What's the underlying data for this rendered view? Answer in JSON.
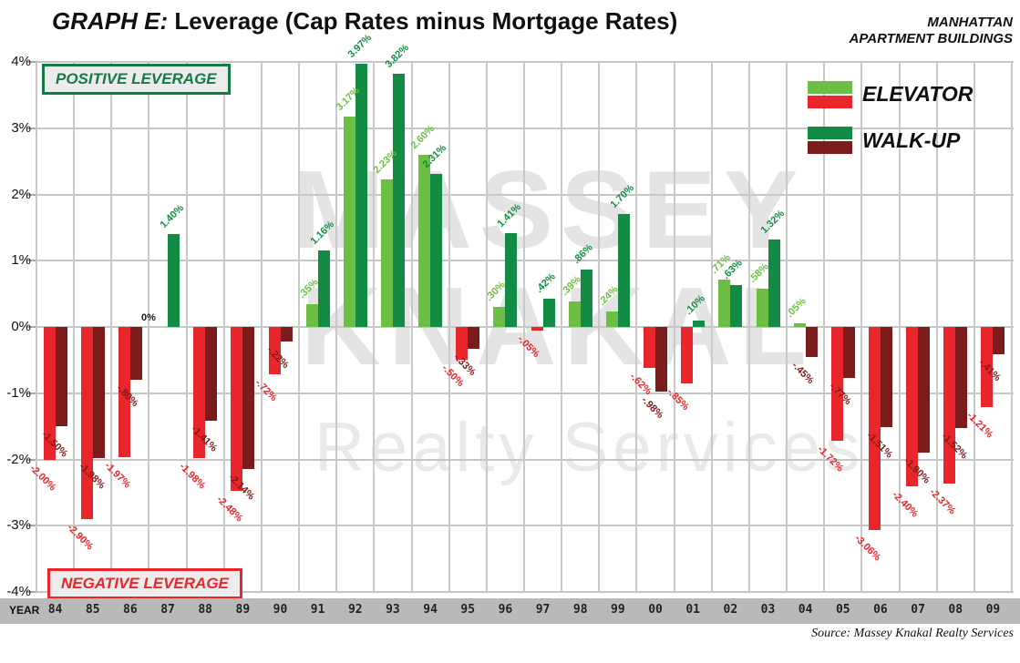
{
  "title": {
    "prefix": "GRAPH E:",
    "rest": " Leverage (Cap Rates minus Mortgage Rates)"
  },
  "header_right": {
    "line1": "MANHATTAN",
    "line2": "APARTMENT BUILDINGS"
  },
  "annotations": {
    "positive": "POSITIVE LEVERAGE",
    "negative": "NEGATIVE LEVERAGE"
  },
  "legend": {
    "items": [
      {
        "label": "ELEVATOR",
        "pos_color": "#6cbe45",
        "neg_color": "#e8262b"
      },
      {
        "label": "WALK-UP",
        "pos_color": "#148b44",
        "neg_color": "#7c1b1b"
      }
    ]
  },
  "watermark": {
    "line1": "MASSEY",
    "line2": "KNAKAL",
    "line3": "Realty Services"
  },
  "axis": {
    "year_label": "YEAR",
    "y_ticks": [
      "4%",
      "3%",
      "2%",
      "1%",
      "0%",
      "-1%",
      "-2%",
      "-3%",
      "-4%"
    ]
  },
  "source": "Source: Massey Knakal Realty Services",
  "colors": {
    "grid": "#c6c6c6",
    "band": "#b9b9b9",
    "watermark": "#e4e4e4",
    "elevator_pos": "#6cbe45",
    "elevator_neg": "#e8262b",
    "walkup_pos": "#148b44",
    "walkup_neg": "#7c1b1b"
  },
  "chart_data": {
    "type": "bar",
    "title": "GRAPH E: Leverage (Cap Rates minus Mortgage Rates)",
    "xlabel": "YEAR",
    "ylabel": "Leverage (%)",
    "ylim": [
      -4,
      4
    ],
    "ytick_step": 1,
    "grid": true,
    "legend_position": "top-right",
    "categories": [
      "84",
      "85",
      "86",
      "87",
      "88",
      "89",
      "90",
      "91",
      "92",
      "93",
      "94",
      "95",
      "96",
      "97",
      "98",
      "99",
      "00",
      "01",
      "02",
      "03",
      "04",
      "05",
      "06",
      "07",
      "08",
      "09"
    ],
    "series": [
      {
        "name": "ELEVATOR",
        "pos_color": "#6cbe45",
        "neg_color": "#e8262b",
        "values": [
          -2.0,
          -2.9,
          -1.97,
          0.0,
          -1.98,
          -2.48,
          -0.72,
          0.35,
          3.17,
          2.23,
          2.6,
          -0.5,
          0.3,
          -0.05,
          0.39,
          0.24,
          -0.62,
          -0.85,
          0.71,
          0.58,
          0.05,
          -1.72,
          -3.06,
          -2.4,
          -2.37,
          -1.21
        ],
        "labels": [
          "-2.00%",
          "-2.90%",
          "-1.97%",
          "0%",
          "-1.98%",
          "-2.48%",
          "-.72%",
          ".35%",
          "3.17%",
          "2.23%",
          "2.60%",
          "-.50%",
          ".30%",
          "-.05%",
          ".39%",
          ".24%",
          "-.62%",
          "-.85%",
          ".71%",
          ".58%",
          ".05%",
          "-1.72%",
          "-3.06%",
          "-2.40%",
          "-2.37%",
          "-1.21%"
        ]
      },
      {
        "name": "WALK-UP",
        "pos_color": "#148b44",
        "neg_color": "#7c1b1b",
        "values": [
          -1.5,
          -1.98,
          -0.8,
          1.4,
          -1.41,
          -2.14,
          -0.22,
          1.16,
          3.97,
          3.82,
          2.31,
          -0.33,
          1.41,
          0.42,
          0.86,
          1.7,
          -0.98,
          0.1,
          0.63,
          1.32,
          -0.45,
          -0.77,
          -1.51,
          -1.9,
          -1.52,
          -0.41
        ],
        "labels": [
          "-1.50%",
          "-1.98%",
          "-.80%",
          "1.40%",
          "-1.41%",
          "-2.14%",
          "-.22%",
          "1.16%",
          "3.97%",
          "3.82%",
          "2.31%",
          "-.33%",
          "1.41%",
          ".42%",
          ".86%",
          "1.70%",
          "-.98%",
          ".10%",
          ".63%",
          "1.32%",
          "-.45%",
          "-.77%",
          "-1.51%",
          "-1.90%",
          "-1.52%",
          "-.41%"
        ]
      }
    ]
  }
}
